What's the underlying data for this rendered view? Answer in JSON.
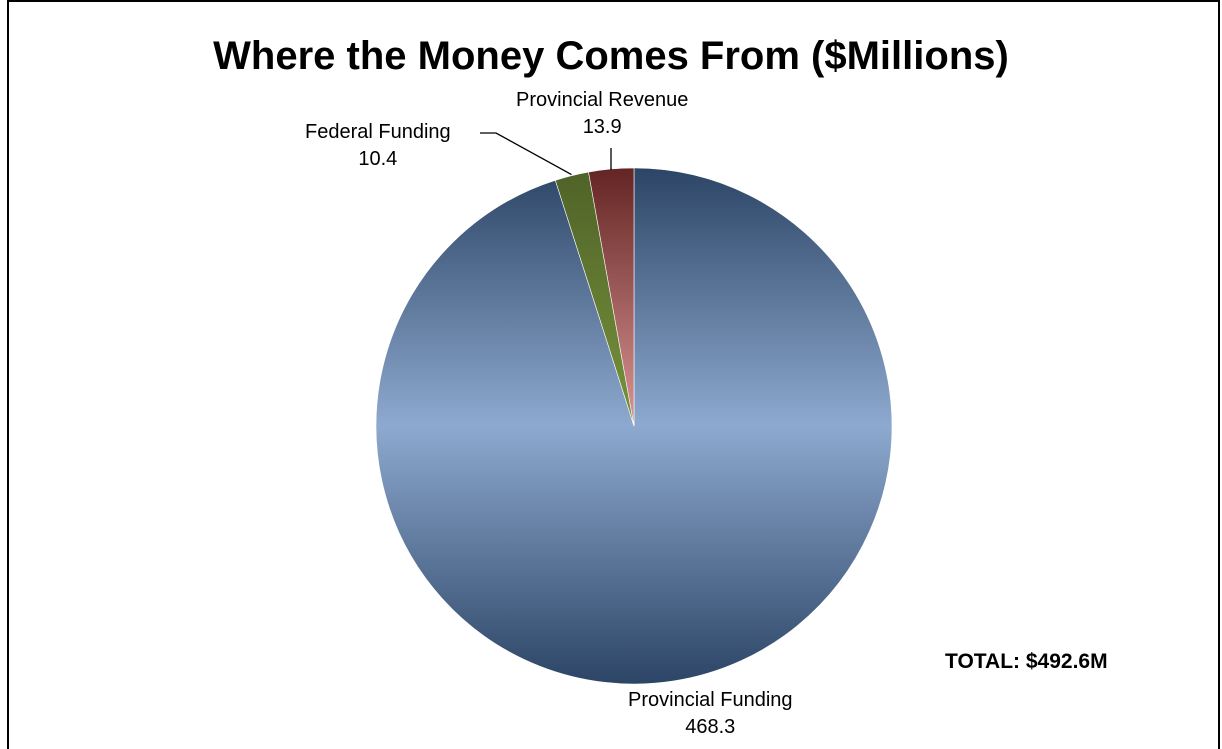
{
  "chart_data": {
    "type": "pie",
    "title": "Where the Money Comes From ($Millions)",
    "categories": [
      "Provincial Funding",
      "Federal Funding",
      "Provincial Revenue"
    ],
    "values": [
      468.3,
      10.4,
      13.9
    ],
    "value_labels": [
      "468.3",
      "10.4",
      "13.9"
    ],
    "colors": [
      "#8ea9cf",
      "#4f6228",
      "#632523"
    ],
    "highlight_colors": [
      "#8ea9cf",
      "#77933c",
      "#d99594"
    ],
    "edge_colors": [
      "#2c4566",
      "#3b4a1e",
      "#4a1b1a"
    ],
    "legend": "none",
    "annotation": "TOTAL: $492.6M"
  }
}
